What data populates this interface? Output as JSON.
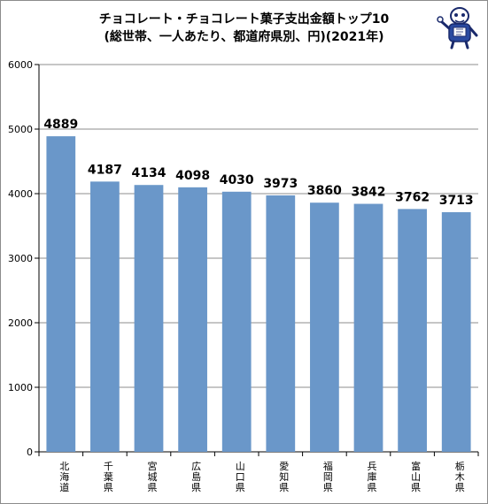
{
  "page": {
    "title_line1": "チョコレート・チョコレート菓子支出金額トップ10",
    "title_line2": "(総世帯、一人あたり、都道府県別、円)(2021年)"
  },
  "chart_data": {
    "type": "bar",
    "title": "チョコレート・チョコレート菓子支出金額トップ10 (総世帯、一人あたり、都道府県別、円)(2021年)",
    "categories": [
      "北海道",
      "千葉県",
      "宮城県",
      "広島県",
      "山口県",
      "愛知県",
      "福岡県",
      "兵庫県",
      "富山県",
      "栃木県"
    ],
    "values": [
      4889,
      4187,
      4134,
      4098,
      4030,
      3973,
      3860,
      3842,
      3762,
      3713
    ],
    "data_labels": [
      "4889",
      "4187",
      "4134",
      "4098",
      "4030",
      "3973",
      "3860",
      "3842",
      "3762",
      "3713"
    ],
    "ylim": [
      0,
      6000
    ],
    "yticks": [
      0,
      1000,
      2000,
      3000,
      4000,
      5000,
      6000
    ],
    "ytick_labels": [
      "0",
      "1000",
      "2000",
      "3000",
      "4000",
      "5000",
      "6000"
    ],
    "xlabel": "",
    "ylabel": "",
    "grid": true,
    "legend": "none",
    "bar_color": "#6a97c9",
    "grid_color": "#8c8c8c"
  },
  "mascot": {
    "icon": "mascot-icon"
  }
}
